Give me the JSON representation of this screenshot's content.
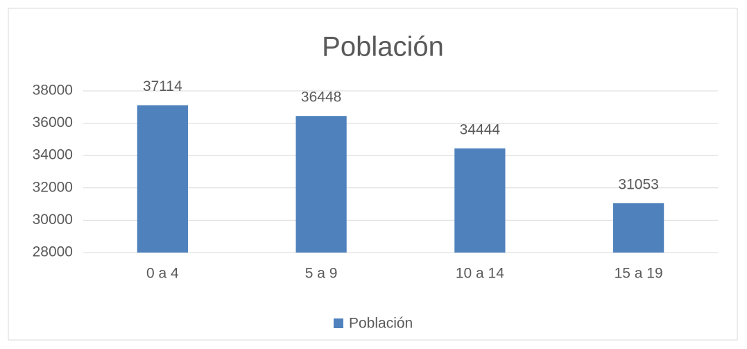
{
  "chart_data": {
    "type": "bar",
    "title": "Población",
    "categories": [
      "0 a 4",
      "5 a 9",
      "10 a 14",
      "15 a 19"
    ],
    "series": [
      {
        "name": "Población",
        "color": "#4f81bd",
        "values": [
          37114,
          36448,
          34444,
          31053
        ]
      }
    ],
    "ylim": [
      28000,
      38000
    ],
    "yticks": [
      28000,
      30000,
      32000,
      34000,
      36000,
      38000
    ],
    "grid": true,
    "legend": "bottom"
  }
}
